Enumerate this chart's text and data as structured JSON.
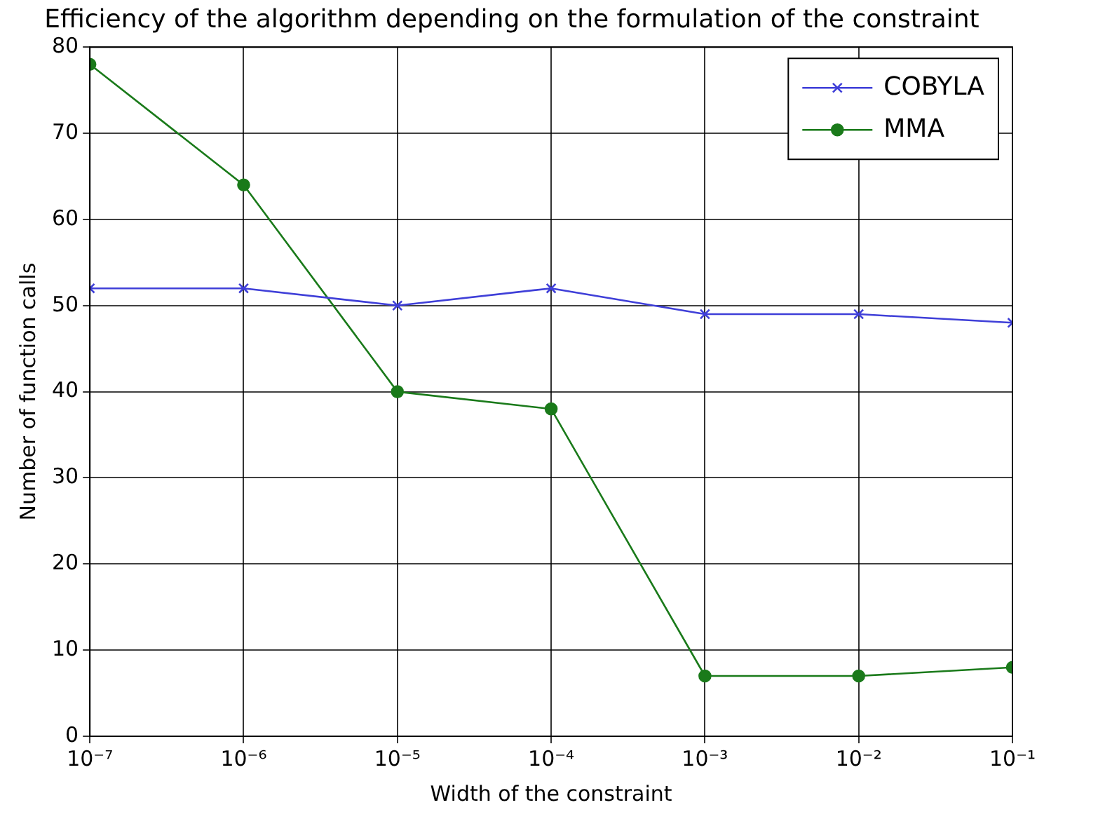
{
  "chart_data": {
    "type": "line",
    "title": "Efficiency of the algorithm depending on the formulation of the constraint",
    "xlabel": "Width of the constraint",
    "ylabel": "Number of function calls",
    "x": [
      1e-07,
      1e-06,
      1e-05,
      0.0001,
      0.001,
      0.01,
      0.1
    ],
    "series": [
      {
        "name": "COBYLA",
        "color": "#3f3fd8",
        "marker": "cross",
        "values": [
          52,
          52,
          50,
          52,
          49,
          49,
          48
        ]
      },
      {
        "name": "MMA",
        "color": "#1a7a1a",
        "marker": "circle",
        "values": [
          78,
          64,
          40,
          38,
          7,
          7,
          8
        ]
      }
    ],
    "log": "x",
    "xlim": [
      1e-07,
      0.1
    ],
    "xticks": [
      {
        "value": 1e-07,
        "label": "10⁻⁷"
      },
      {
        "value": 1e-06,
        "label": "10⁻⁶"
      },
      {
        "value": 1e-05,
        "label": "10⁻⁵"
      },
      {
        "value": 0.0001,
        "label": "10⁻⁴"
      },
      {
        "value": 0.001,
        "label": "10⁻³"
      },
      {
        "value": 0.01,
        "label": "10⁻²"
      },
      {
        "value": 0.1,
        "label": "10⁻¹"
      }
    ],
    "ylim": [
      0,
      80
    ],
    "yticks": [
      0,
      10,
      20,
      30,
      40,
      50,
      60,
      70,
      80
    ],
    "grid": true,
    "legend": "top right",
    "line_style": "solid"
  }
}
